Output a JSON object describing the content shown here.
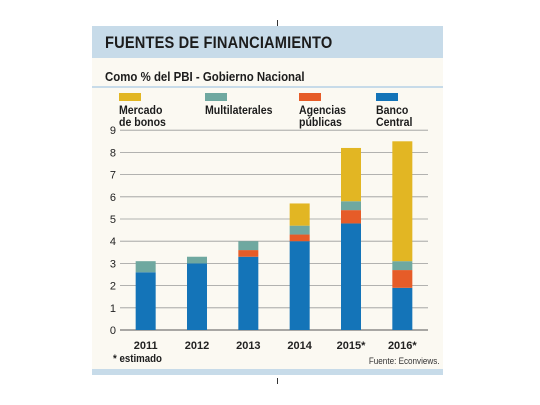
{
  "header": {
    "title": "FUENTES DE FINANCIAMIENTO"
  },
  "subtitle": "Como % del PBI - Gobierno Nacional",
  "legend": [
    {
      "label": "Mercado\nde bonos",
      "color": "#e2b623"
    },
    {
      "label": "Multilaterales",
      "color": "#6fa8a0"
    },
    {
      "label": "Agencias\npúblicas",
      "color": "#e65c28"
    },
    {
      "label": "Banco\nCentral",
      "color": "#1474b8"
    }
  ],
  "footnote": "* estimado",
  "source": "Fuente: Econviews.",
  "chart_data": {
    "type": "bar",
    "stacked": true,
    "categories": [
      "2011",
      "2012",
      "2013",
      "2014",
      "2015*",
      "2016*"
    ],
    "series": [
      {
        "name": "Banco Central",
        "color": "#1474b8",
        "values": [
          2.6,
          3.0,
          3.3,
          4.0,
          4.8,
          1.9
        ]
      },
      {
        "name": "Agencias públicas",
        "color": "#e65c28",
        "values": [
          0,
          0,
          0.3,
          0.3,
          0.6,
          0.8
        ]
      },
      {
        "name": "Multilaterales",
        "color": "#6fa8a0",
        "values": [
          0.5,
          0.3,
          0.4,
          0.4,
          0.4,
          0.4
        ]
      },
      {
        "name": "Mercado de bonos",
        "color": "#e2b623",
        "values": [
          0,
          0,
          0,
          1.0,
          2.4,
          5.4
        ]
      }
    ],
    "y_ticks": [
      "0",
      "1",
      "2",
      "3",
      "4",
      "5",
      "6",
      "7",
      "8",
      "9"
    ],
    "ylim": [
      0,
      9
    ],
    "grid": true
  }
}
